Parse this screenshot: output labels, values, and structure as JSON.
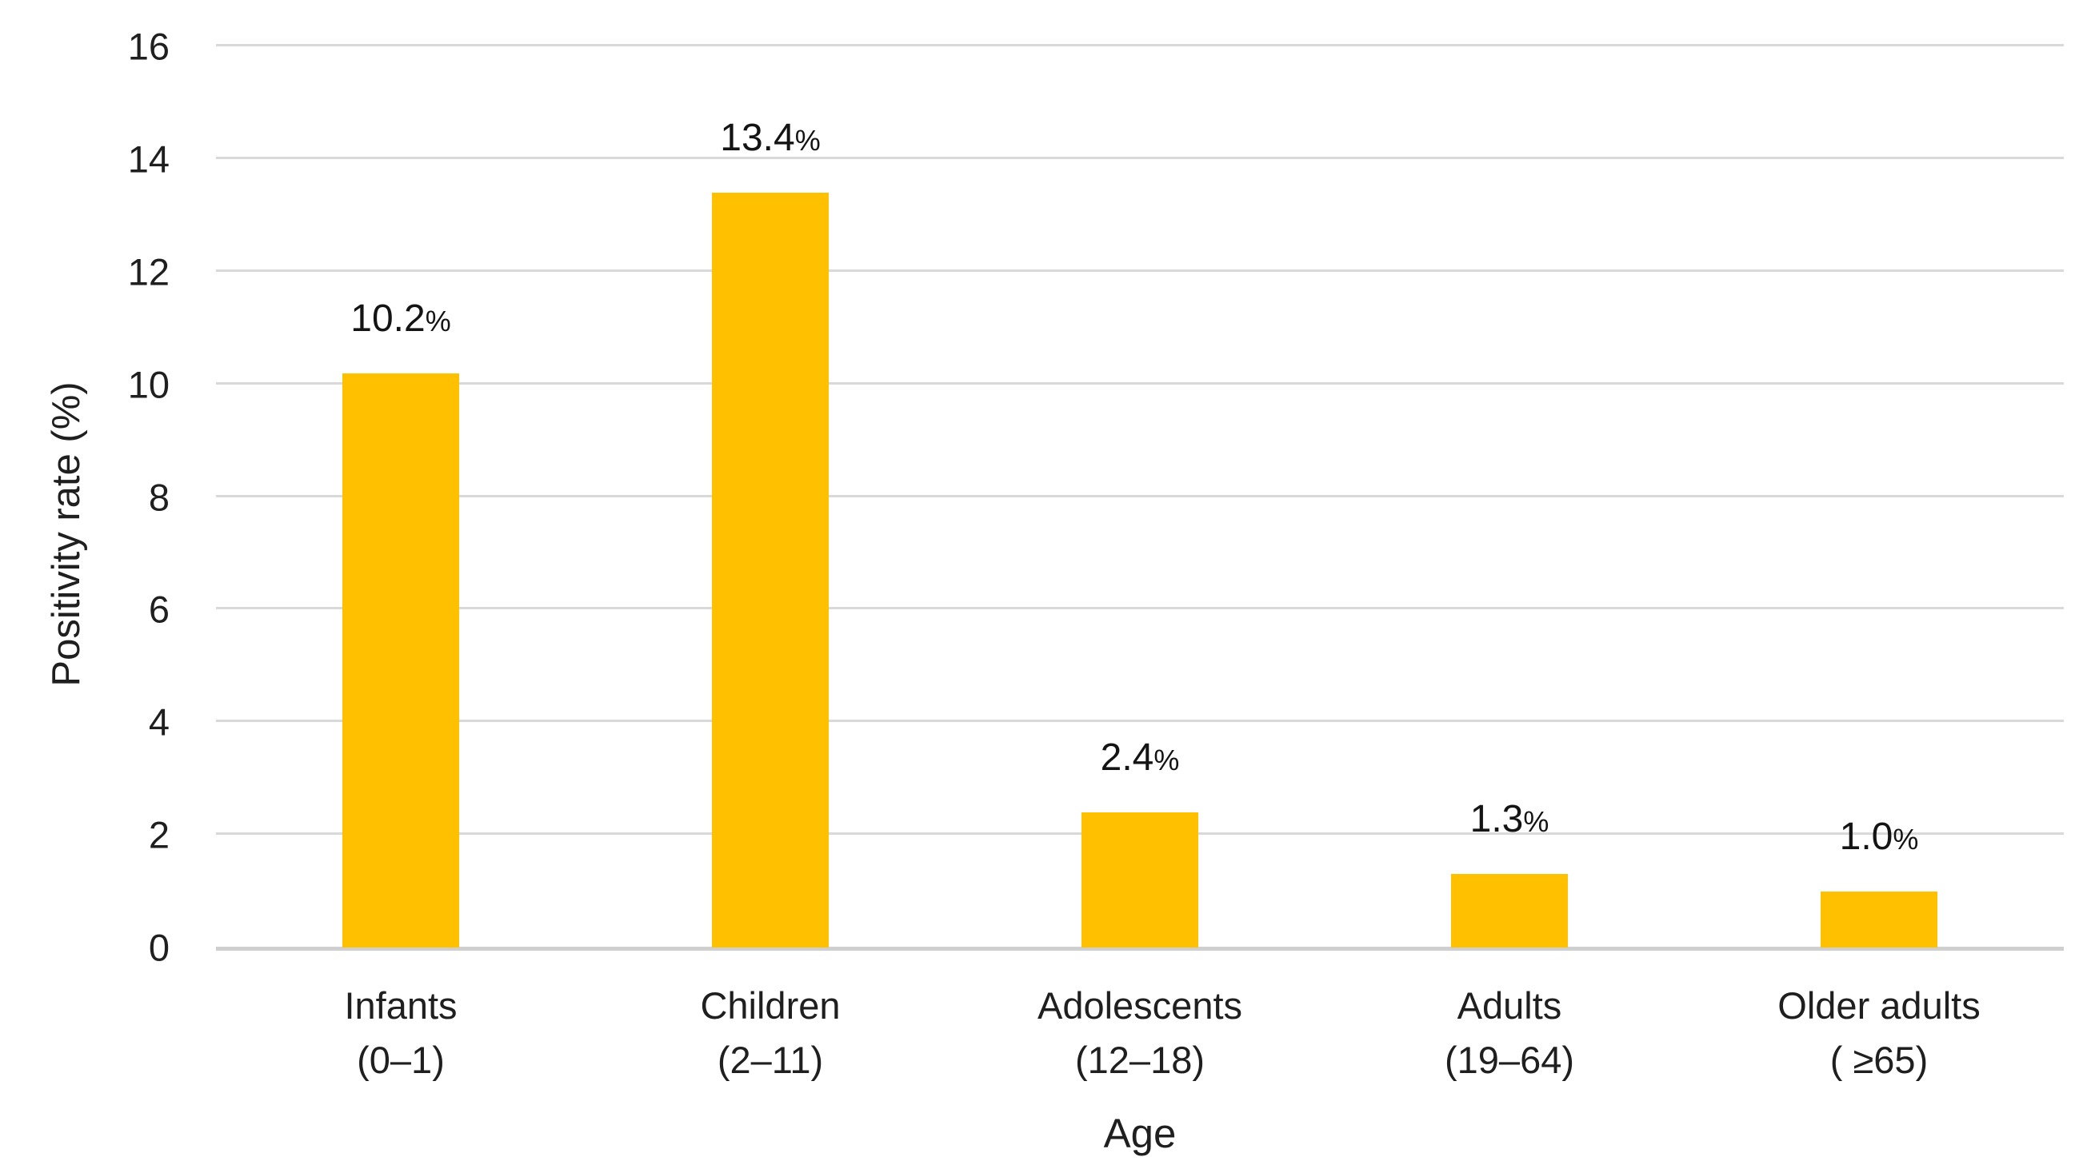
{
  "chart_data": {
    "type": "bar",
    "title": "",
    "xlabel": "Age",
    "ylabel": "Positivity rate (%)",
    "categories": [
      {
        "name": "Infants",
        "range": "(0–1)"
      },
      {
        "name": "Children",
        "range": "(2–11)"
      },
      {
        "name": "Adolescents",
        "range": "(12–18)"
      },
      {
        "name": "Adults",
        "range": "(19–64)"
      },
      {
        "name": "Older adults",
        "range": "( ≥65)"
      }
    ],
    "values": [
      10.2,
      13.4,
      2.4,
      1.3,
      1.0
    ],
    "bar_value_labels": [
      "10.2",
      "13.4",
      "2.4",
      "1.3",
      "1.0"
    ],
    "percent_sign": "%",
    "ylim": [
      0,
      16
    ],
    "yticks": [
      0,
      2,
      4,
      6,
      8,
      10,
      12,
      14,
      16
    ],
    "grid": "horizontal-only",
    "legend": "none",
    "colors": {
      "bar": "#FFC000",
      "gridline": "#D9D9D9",
      "axis_line": "#CFCFCF",
      "text": "#1F1F1F"
    }
  }
}
